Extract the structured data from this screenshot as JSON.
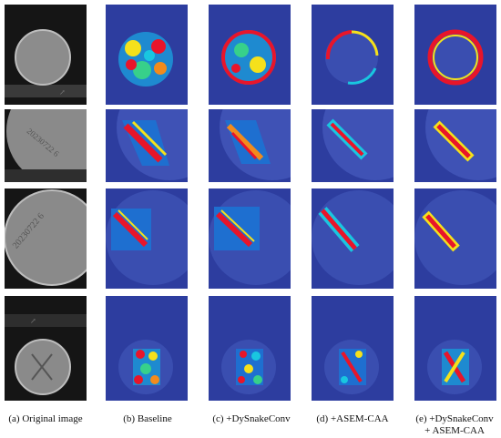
{
  "figure": {
    "captions": {
      "a": "(a) Original image",
      "b": "(b) Baseline",
      "c": "(c) +DySnakeConv",
      "d": "(d)  +ASEM-CAA",
      "e1": "(e) +DySnakeConv",
      "e2": "+ ASEM-CAA"
    },
    "stamp_texts": {
      "row2": "20230722 6",
      "row3": "20230722 6"
    },
    "colors": {
      "heatmap_background": "#2a3a9e",
      "heatmap_low": "#1e2fa8",
      "heatmap_mid": "#19c6e0",
      "heatmap_high": "#e8152a",
      "original_bg": "#1a1a1a",
      "disc": "#8a8a8a"
    }
  }
}
